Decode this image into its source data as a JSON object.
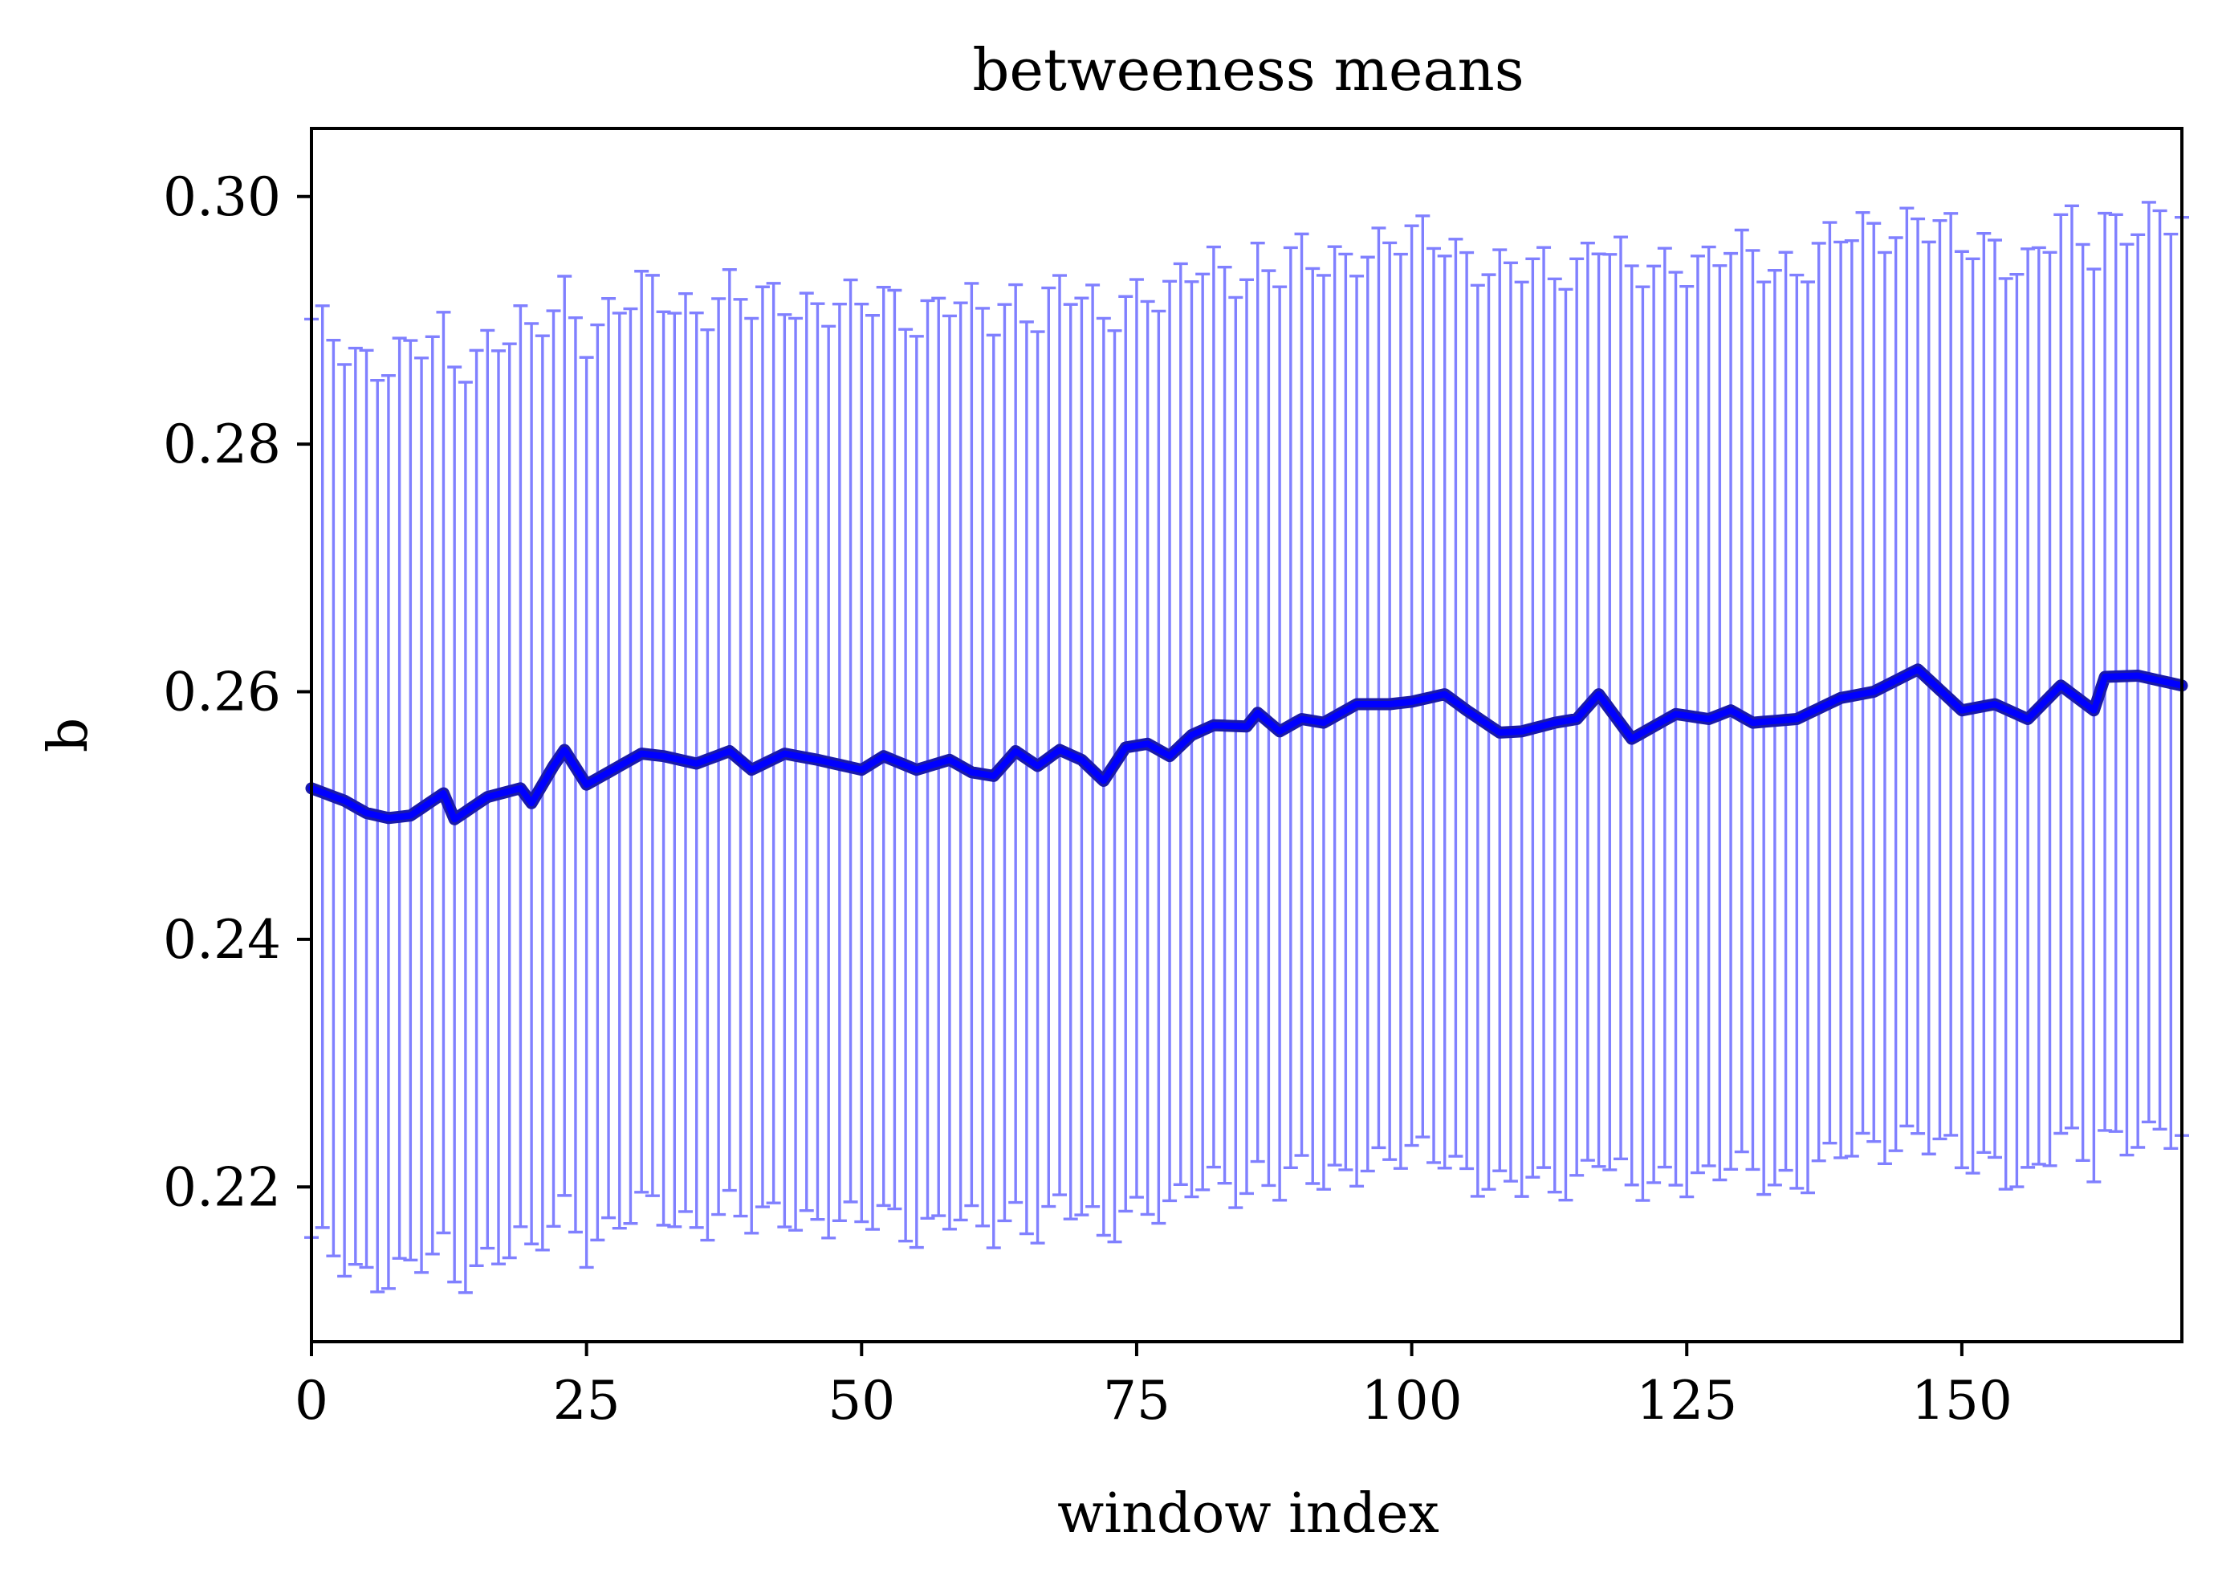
{
  "chart_data": {
    "type": "line",
    "title": "betweeness means",
    "xlabel": "window index",
    "ylabel": "b",
    "xlim": [
      0,
      170
    ],
    "ylim": [
      0.2075,
      0.3055
    ],
    "xticks": [
      0,
      25,
      50,
      75,
      100,
      125,
      150
    ],
    "xtick_labels": [
      "0",
      "25",
      "50",
      "75",
      "100",
      "125",
      "150"
    ],
    "yticks": [
      0.22,
      0.24,
      0.26,
      0.28,
      0.3
    ],
    "ytick_labels": [
      "0.22",
      "0.24",
      "0.26",
      "0.28",
      "0.30"
    ],
    "grid": false,
    "legend": "none",
    "series": [
      {
        "color": "#0000ff",
        "errorbar_color": "#8080ff",
        "error_half_width": 0.037,
        "anchors_x": [
          0,
          3,
          5,
          7,
          9,
          12,
          13,
          16,
          19,
          20,
          22,
          23,
          25,
          28,
          30,
          32,
          35,
          38,
          40,
          43,
          46,
          50,
          52,
          55,
          58,
          60,
          62,
          64,
          66,
          68,
          70,
          72,
          74,
          76,
          78,
          80,
          82,
          85,
          86,
          88,
          90,
          92,
          95,
          98,
          100,
          103,
          105,
          108,
          110,
          113,
          115,
          117,
          120,
          124,
          127,
          129,
          131,
          135,
          139,
          142,
          146,
          150,
          153,
          156,
          159,
          162,
          163,
          166,
          170
        ],
        "anchors_y": [
          0.2522,
          0.2512,
          0.2502,
          0.2498,
          0.25,
          0.2518,
          0.2497,
          0.2515,
          0.2522,
          0.251,
          0.254,
          0.2553,
          0.2525,
          0.254,
          0.255,
          0.2548,
          0.2542,
          0.2552,
          0.2537,
          0.255,
          0.2545,
          0.2537,
          0.2548,
          0.2537,
          0.2545,
          0.2535,
          0.2532,
          0.2552,
          0.254,
          0.2553,
          0.2545,
          0.2528,
          0.2555,
          0.2558,
          0.2548,
          0.2565,
          0.2573,
          0.2572,
          0.2583,
          0.2568,
          0.2578,
          0.2575,
          0.259,
          0.259,
          0.2592,
          0.2598,
          0.2585,
          0.2567,
          0.2568,
          0.2575,
          0.2578,
          0.2598,
          0.2562,
          0.2582,
          0.2578,
          0.2585,
          0.2575,
          0.2578,
          0.2595,
          0.26,
          0.2618,
          0.2585,
          0.259,
          0.2578,
          0.2605,
          0.2585,
          0.2612,
          0.2613,
          0.2605
        ]
      }
    ]
  }
}
